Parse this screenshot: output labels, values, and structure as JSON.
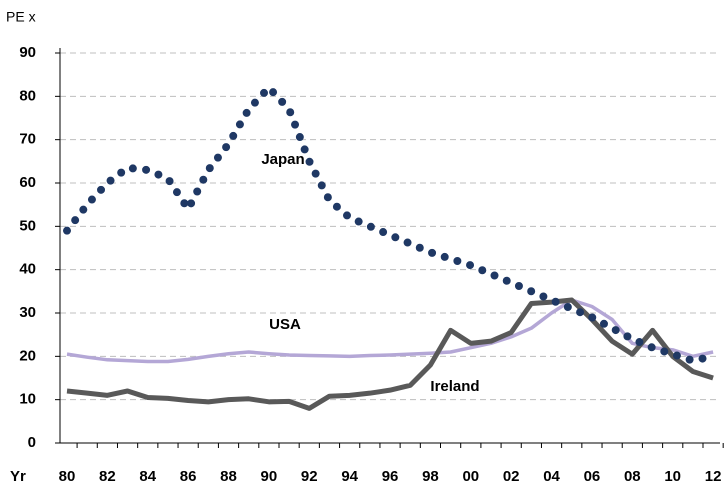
{
  "chart_data": {
    "type": "line",
    "y_label": "PE x",
    "x_label": "Yr",
    "categories": [
      "80",
      null,
      "82",
      null,
      "84",
      null,
      "86",
      null,
      "88",
      null,
      "90",
      null,
      "92",
      null,
      "94",
      null,
      "96",
      null,
      "98",
      null,
      "00",
      null,
      "02",
      null,
      "04",
      null,
      "06",
      null,
      "08",
      null,
      "10",
      null,
      "12"
    ],
    "series": [
      {
        "name": "Japan",
        "color": "#1f3864",
        "style": "dotted",
        "values": [
          49,
          55,
          60,
          63.5,
          63,
          61,
          54,
          63,
          69,
          77,
          82,
          77,
          65,
          56,
          52,
          50,
          48,
          46,
          44,
          42.5,
          41,
          39,
          37,
          35,
          33,
          31,
          29,
          26.5,
          24,
          22,
          20.5,
          19,
          20
        ]
      },
      {
        "name": "USA",
        "color": "#b4a7d6",
        "style": "solid",
        "values": [
          20.5,
          19.8,
          19.2,
          19,
          18.8,
          18.8,
          19.3,
          20,
          20.6,
          21,
          20.6,
          20.3,
          20.2,
          20.1,
          20,
          20.2,
          20.3,
          20.5,
          20.7,
          21,
          22,
          23,
          24.5,
          26.5,
          30,
          33,
          31.5,
          28.5,
          23,
          22,
          21.5,
          20,
          21
        ]
      },
      {
        "name": "Ireland",
        "color": "#595959",
        "style": "solid",
        "values": [
          12,
          11.5,
          11,
          12,
          10.5,
          10.3,
          9.8,
          9.5,
          10,
          10.2,
          9.5,
          9.6,
          8,
          10.8,
          11,
          11.5,
          12.2,
          13.3,
          18,
          26,
          23,
          23.5,
          25.5,
          32.2,
          32.5,
          33,
          28.5,
          23.5,
          20.5,
          26,
          20,
          16.5,
          15
        ]
      }
    ],
    "ylim": [
      0,
      90
    ],
    "yticks": [
      0,
      10,
      20,
      30,
      40,
      50,
      60,
      70,
      80,
      90
    ],
    "grid": true
  }
}
